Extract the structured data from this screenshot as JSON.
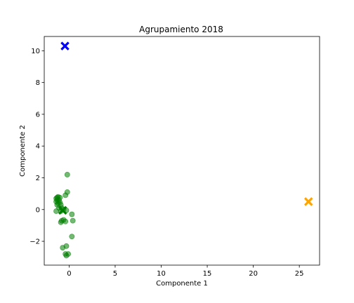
{
  "chart_data": {
    "type": "scatter",
    "title": "Agrupamiento 2018",
    "xlabel": "Componente 1",
    "ylabel": "Componente 2",
    "xlim": [
      -2.7,
      27.2
    ],
    "ylim": [
      -3.5,
      10.9
    ],
    "xticks": [
      0,
      5,
      10,
      15,
      20,
      25
    ],
    "yticks": [
      -2,
      0,
      2,
      4,
      6,
      8,
      10
    ],
    "grid": false,
    "legend": "none",
    "colors": {
      "points": "#008000",
      "centroid_cluster_0": "#0000ff",
      "centroid_cluster_1": "#008000",
      "centroid_cluster_2": "#ffa500",
      "axes": "#000000",
      "background": "#ffffff"
    },
    "series": [
      {
        "marker": "circle",
        "color": "#008000",
        "points": [
          [
            -1.4,
            0.7
          ],
          [
            -1.3,
            0.75
          ],
          [
            -1.2,
            0.8
          ],
          [
            -1.0,
            0.75
          ],
          [
            -1.3,
            0.6
          ],
          [
            -1.1,
            0.6
          ],
          [
            -1.4,
            0.5
          ],
          [
            -1.2,
            0.4
          ],
          [
            -1.0,
            0.45
          ],
          [
            -1.3,
            0.3
          ],
          [
            -0.9,
            0.3
          ],
          [
            -1.1,
            0.1
          ],
          [
            -0.8,
            0.1
          ],
          [
            -1.4,
            -0.1
          ],
          [
            -0.9,
            -0.1
          ],
          [
            -0.4,
            0.9
          ],
          [
            -0.2,
            1.1
          ],
          [
            -0.3,
            -0.05
          ],
          [
            -0.6,
            0.0
          ],
          [
            -0.2,
            2.2
          ],
          [
            0.3,
            -0.3
          ],
          [
            0.4,
            -0.7
          ],
          [
            -0.8,
            -0.7
          ],
          [
            -0.9,
            -0.8
          ],
          [
            -0.4,
            -0.75
          ],
          [
            0.3,
            -1.7
          ],
          [
            -0.3,
            -2.3
          ],
          [
            -0.7,
            -2.4
          ],
          [
            -0.4,
            -2.8
          ],
          [
            -0.1,
            -2.8
          ],
          [
            -0.3,
            -2.9
          ],
          [
            -0.6,
            -0.65
          ]
        ]
      }
    ],
    "centroids": [
      {
        "marker": "x",
        "color": "#0000ff",
        "x": -0.45,
        "y": 10.3
      },
      {
        "marker": "x",
        "color": "#008000",
        "x": -0.7,
        "y": -0.05
      },
      {
        "marker": "x",
        "color": "#ffa500",
        "x": 26.0,
        "y": 0.5
      }
    ]
  }
}
